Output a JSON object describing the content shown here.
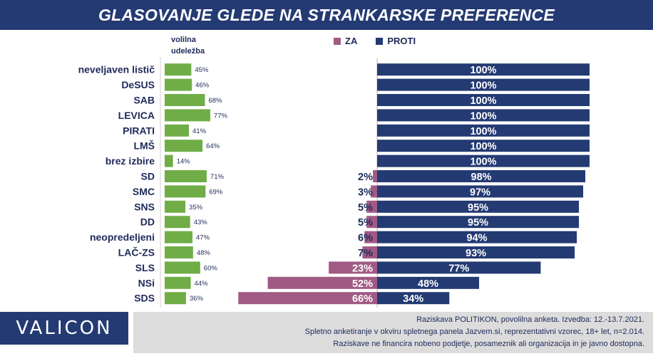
{
  "title": "GLASOVANJE GLEDE NA STRANKARSKE PREFERENCE",
  "turnout_header": [
    "volilna",
    "udeležba"
  ],
  "legend": [
    {
      "label": "ZA",
      "color": "#a05a83"
    },
    {
      "label": "PROTI",
      "color": "#243a73"
    }
  ],
  "logo": "VALICON",
  "footer": [
    "Raziskava POLITIKON, povolilna anketa. Izvedba: 12.-13.7.2021.",
    "Spletno anketiranje v okviru spletnega panela Jazvem.si, reprezentativni vzorec, 18+ let, n=2.014.",
    "Raziskave ne financira nobeno podjetje, posameznik ali organizacija in je javno dostopna."
  ],
  "chart_data": {
    "type": "bar",
    "categories": [
      "neveljaven listič",
      "DeSUS",
      "SAB",
      "LEVICA",
      "PIRATI",
      "LMŠ",
      "brez izbire",
      "SD",
      "SMC",
      "SNS",
      "DD",
      "neopredeljeni",
      "LAČ-ZS",
      "SLS",
      "NSi",
      "SDS"
    ],
    "turnout": [
      45,
      46,
      68,
      77,
      41,
      64,
      14,
      71,
      69,
      35,
      43,
      47,
      48,
      60,
      44,
      36
    ],
    "turnout_labels": [
      "45%",
      "46%",
      "68%",
      "77%",
      "41%",
      "64%",
      "14%",
      "71%",
      "69%",
      "35%",
      "43%",
      "47%",
      "48%",
      "60%",
      "44%",
      "36%"
    ],
    "series": [
      {
        "name": "ZA",
        "values": [
          0,
          0,
          0,
          0,
          0,
          0,
          0,
          2,
          3,
          5,
          5,
          6,
          7,
          23,
          52,
          66
        ],
        "labels": [
          "",
          "",
          "",
          "",
          "",
          "",
          "",
          "2%",
          "3%",
          "5%",
          "5%",
          "6%",
          "7%",
          "23%",
          "52%",
          "66%"
        ]
      },
      {
        "name": "PROTI",
        "values": [
          100,
          100,
          100,
          100,
          100,
          100,
          100,
          98,
          97,
          95,
          95,
          94,
          93,
          77,
          48,
          34
        ],
        "labels": [
          "100%",
          "100%",
          "100%",
          "100%",
          "100%",
          "100%",
          "100%",
          "98%",
          "97%",
          "95%",
          "95%",
          "94%",
          "93%",
          "77%",
          "48%",
          "34%"
        ]
      }
    ],
    "colors": {
      "turnout": "#70ad47",
      "za": "#a05a83",
      "proti": "#243a73"
    },
    "legend_position": "top",
    "grid": false
  }
}
